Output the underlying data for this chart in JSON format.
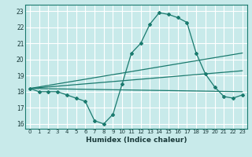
{
  "title": "",
  "xlabel": "Humidex (Indice chaleur)",
  "ylabel": "",
  "bg_color": "#c8eaea",
  "grid_color": "#ffffff",
  "line_color": "#1a7a6e",
  "xlim": [
    -0.5,
    23.5
  ],
  "ylim": [
    15.7,
    23.4
  ],
  "xticks": [
    0,
    1,
    2,
    3,
    4,
    5,
    6,
    7,
    8,
    9,
    10,
    11,
    12,
    13,
    14,
    15,
    16,
    17,
    18,
    19,
    20,
    21,
    22,
    23
  ],
  "yticks": [
    16,
    17,
    18,
    19,
    20,
    21,
    22,
    23
  ],
  "main_x": [
    0,
    1,
    2,
    3,
    4,
    5,
    6,
    7,
    8,
    9,
    10,
    11,
    12,
    13,
    14,
    15,
    16,
    17,
    18,
    19,
    20,
    21,
    22,
    23
  ],
  "main_y": [
    18.2,
    18.0,
    18.0,
    18.0,
    17.8,
    17.6,
    17.4,
    16.2,
    16.0,
    16.6,
    18.5,
    20.4,
    21.0,
    22.2,
    22.9,
    22.8,
    22.6,
    22.3,
    20.4,
    19.1,
    18.3,
    17.7,
    17.6,
    17.8
  ],
  "line1_x": [
    0,
    23
  ],
  "line1_y": [
    18.2,
    18.0
  ],
  "line2_x": [
    0,
    23
  ],
  "line2_y": [
    18.2,
    19.3
  ],
  "line3_x": [
    0,
    23
  ],
  "line3_y": [
    18.2,
    20.4
  ]
}
